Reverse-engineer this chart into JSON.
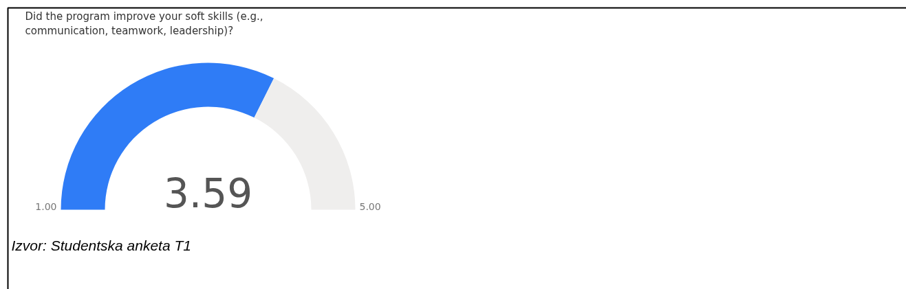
{
  "chart_data": {
    "type": "donut",
    "title": "Did the program improve your soft skills (e.g.,\ncommunication, teamwork, leadership)?",
    "categories": [
      null,
      null
    ],
    "values": [
      64.75,
      35.25
    ],
    "colors": [
      "#2f7cf6",
      "#efeeed"
    ],
    "annotations": [
      "3.59",
      "1.00",
      "5.00",
      "Izvor: Studentska anketa T1"
    ]
  }
}
